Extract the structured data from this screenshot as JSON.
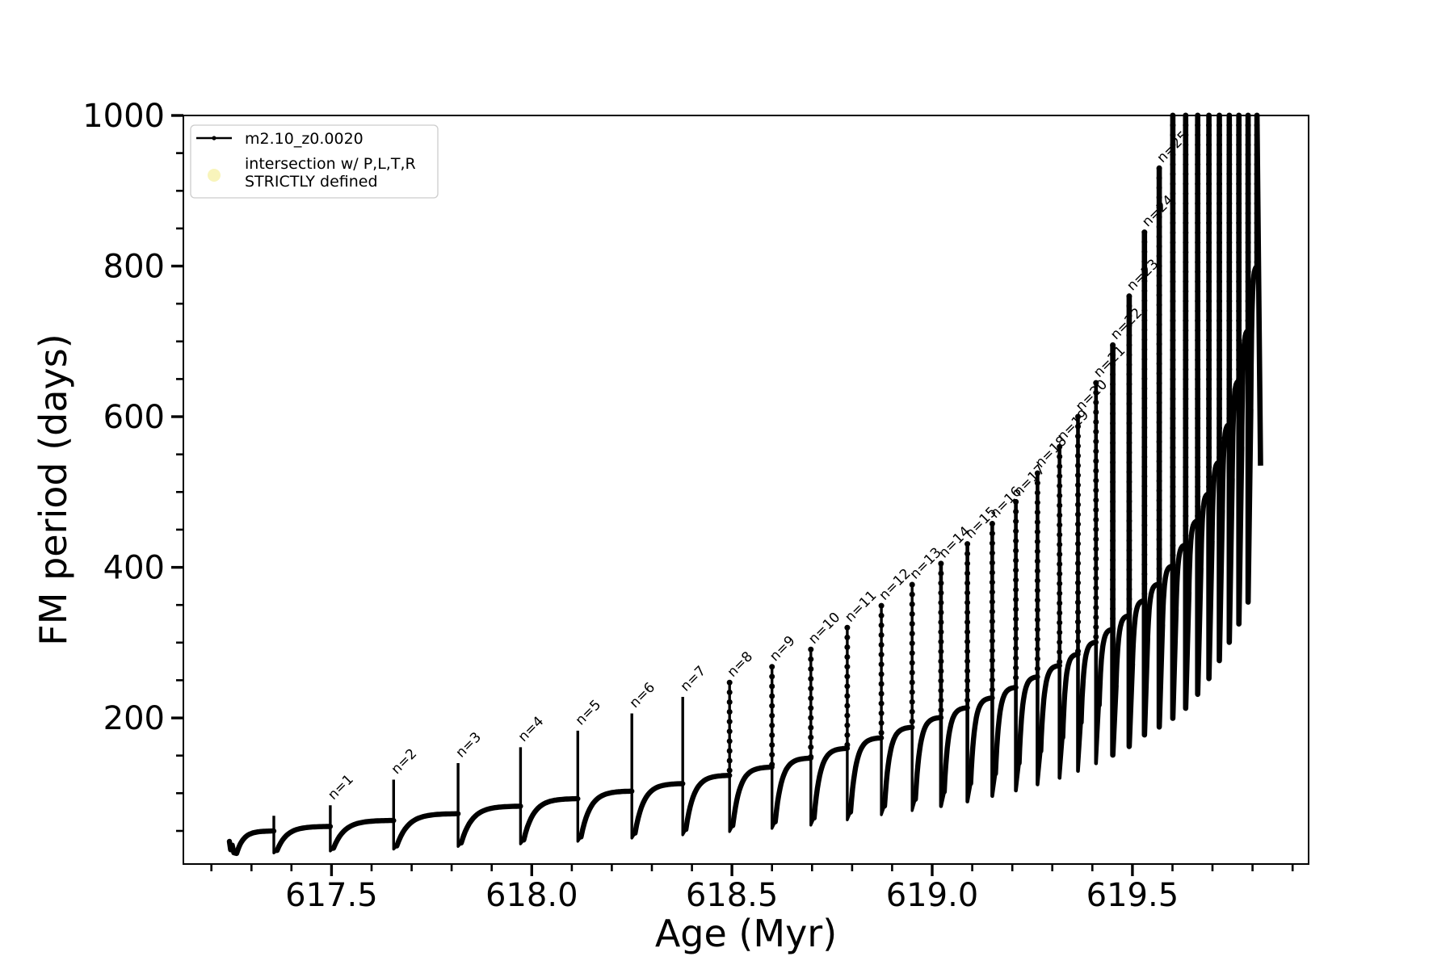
{
  "figure": {
    "background": "#ffffff"
  },
  "chart_data": {
    "type": "line",
    "title": "",
    "xlabel": "Age (Myr)",
    "ylabel": "FM period (days)",
    "xlim": [
      617.13,
      619.94
    ],
    "ylim": [
      6,
      1000
    ],
    "grid": false,
    "x_major_ticks": [
      {
        "v": 617.5,
        "label": "617.5"
      },
      {
        "v": 618.0,
        "label": "618.0"
      },
      {
        "v": 618.5,
        "label": "618.5"
      },
      {
        "v": 619.0,
        "label": "619.0"
      },
      {
        "v": 619.5,
        "label": "619.5"
      }
    ],
    "x_minor_step": 0.1,
    "y_major_ticks": [
      {
        "v": 200,
        "label": "200"
      },
      {
        "v": 400,
        "label": "400"
      },
      {
        "v": 600,
        "label": "600"
      },
      {
        "v": 800,
        "label": "800"
      },
      {
        "v": 1000,
        "label": "1000"
      }
    ],
    "y_minor_step": 50,
    "series_color": "#000000",
    "legend": {
      "border_color": "#cccccc",
      "entries": [
        {
          "marker": "line-dot",
          "color": "#000000",
          "lines": [
            "m2.10_z0.0020"
          ]
        },
        {
          "marker": "dot",
          "color": "#f8f4bb",
          "lines": [
            "intersection w/ P,L,T,R",
            "STRICTLY defined"
          ]
        }
      ]
    },
    "intro_points": [
      [
        617.245,
        36
      ],
      [
        617.248,
        25
      ],
      [
        617.252,
        31
      ],
      [
        617.256,
        21
      ],
      [
        617.263,
        20
      ]
    ],
    "cycles_columns": [
      "label",
      "spike_age_myr",
      "spike_peak_days",
      "dip_days",
      "hump_top_days"
    ],
    "cycles": [
      [
        null,
        617.356,
        70,
        20,
        50
      ],
      [
        "n=1",
        617.497,
        84,
        24,
        56
      ],
      [
        "n=2",
        617.655,
        118,
        27,
        64
      ],
      [
        "n=3",
        617.816,
        140,
        30,
        73
      ],
      [
        "n=4",
        617.972,
        161,
        34,
        83
      ],
      [
        "n=5",
        618.115,
        183,
        38,
        93
      ],
      [
        "n=6",
        618.25,
        206,
        42,
        103
      ],
      [
        "n=7",
        618.377,
        228,
        47,
        113
      ],
      [
        "n=8",
        618.494,
        247,
        52,
        124
      ],
      [
        "n=9",
        618.6,
        268,
        57,
        135
      ],
      [
        "n=10",
        618.697,
        291,
        62,
        147
      ],
      [
        "n=11",
        618.788,
        320,
        67,
        160
      ],
      [
        "n=12",
        618.873,
        349,
        75,
        174
      ],
      [
        "n=13",
        618.95,
        377,
        83,
        188
      ],
      [
        "n=14",
        619.022,
        405,
        92,
        201
      ],
      [
        "n=15",
        619.088,
        431,
        102,
        214
      ],
      [
        "n=16",
        619.15,
        458,
        113,
        227
      ],
      [
        "n=17",
        619.209,
        487,
        126,
        241
      ],
      [
        "n=18",
        619.263,
        525,
        140,
        255
      ],
      [
        "n=19",
        619.318,
        560,
        156,
        270
      ],
      [
        "n=20",
        619.364,
        600,
        174,
        285
      ],
      [
        "n=21",
        619.409,
        645,
        194,
        301
      ],
      [
        "n=22",
        619.451,
        695,
        217,
        318
      ],
      [
        "n=23",
        619.492,
        760,
        243,
        336
      ],
      [
        "n=24",
        619.53,
        845,
        272,
        356
      ],
      [
        "n=25",
        619.567,
        930,
        306,
        378
      ],
      [
        null,
        619.601,
        1035,
        324,
        402
      ],
      [
        null,
        619.633,
        1035,
        344,
        430
      ],
      [
        null,
        619.663,
        1035,
        367,
        462
      ],
      [
        null,
        619.691,
        1035,
        399,
        498
      ],
      [
        null,
        619.717,
        1035,
        435,
        540
      ],
      [
        null,
        619.742,
        1035,
        476,
        590
      ],
      [
        null,
        619.766,
        1035,
        518,
        648
      ],
      [
        null,
        619.789,
        1035,
        560,
        715
      ],
      [
        null,
        619.811,
        1035,
        610,
        800
      ]
    ],
    "tail": {
      "age_end": 619.82,
      "value_end": 535
    }
  }
}
